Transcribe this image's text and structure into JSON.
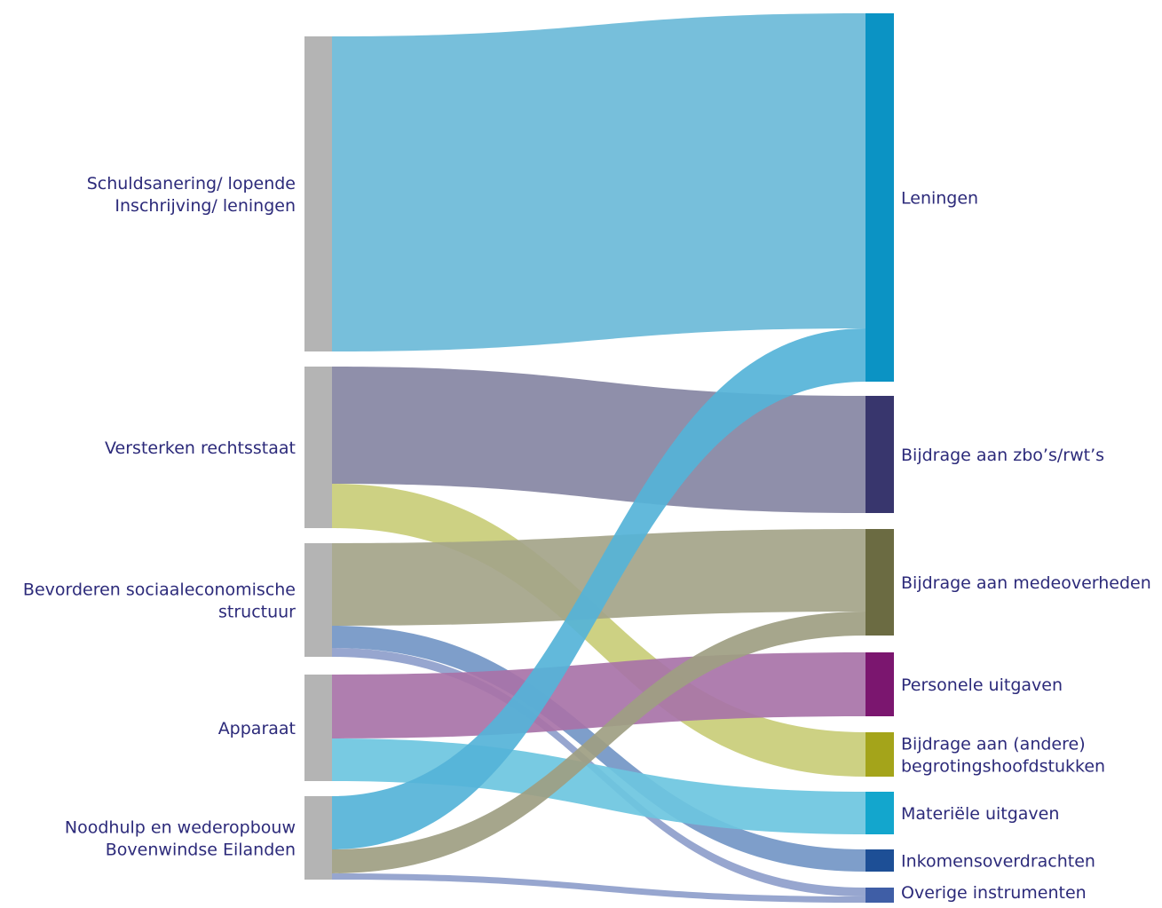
{
  "diagram": {
    "sources": [
      {
        "id": "s1",
        "label_lines": [
          "Schuldsanering/ lopende",
          "Inschrijving/ leningen"
        ]
      },
      {
        "id": "s2",
        "label_lines": [
          "Versterken rechtsstaat"
        ]
      },
      {
        "id": "s3",
        "label_lines": [
          "Bevorderen sociaaleconomische",
          "structuur"
        ]
      },
      {
        "id": "s4",
        "label_lines": [
          "Apparaat"
        ]
      },
      {
        "id": "s5",
        "label_lines": [
          "Noodhulp en wederopbouw",
          "Bovenwindse Eilanden"
        ]
      }
    ],
    "targets": [
      {
        "id": "t1",
        "label_lines": [
          "Leningen"
        ],
        "color": "#0b93c4"
      },
      {
        "id": "t2",
        "label_lines": [
          "Bijdrage aan zbo’s/rwt’s"
        ],
        "color": "#38366d"
      },
      {
        "id": "t3",
        "label_lines": [
          "Bijdrage aan medeoverheden"
        ],
        "color": "#6b6b42"
      },
      {
        "id": "t4",
        "label_lines": [
          "Personele uitgaven"
        ],
        "color": "#7b166f"
      },
      {
        "id": "t5",
        "label_lines": [
          "Bijdrage aan (andere)",
          "begrotingshoofdstukken"
        ],
        "color": "#a4a41a"
      },
      {
        "id": "t6",
        "label_lines": [
          "Materiële uitgaven"
        ],
        "color": "#13a6cd"
      },
      {
        "id": "t7",
        "label_lines": [
          "Inkomensoverdrachten"
        ],
        "color": "#1d4f96"
      },
      {
        "id": "t8",
        "label_lines": [
          "Overige instrumenten"
        ],
        "color": "#3f5ea6"
      }
    ],
    "source_color": "#b4b4b4",
    "label_color": "#2c2a7a",
    "flows": [
      {
        "source": "s1",
        "target": "t1",
        "value": 355,
        "color": "#6bbad8"
      },
      {
        "source": "s2",
        "target": "t2",
        "value": 132,
        "color": "#8586a3"
      },
      {
        "source": "s2",
        "target": "t5",
        "value": 50,
        "color": "#c9cd78"
      },
      {
        "source": "s3",
        "target": "t3",
        "value": 93,
        "color": "#a4a489"
      },
      {
        "source": "s3",
        "target": "t7",
        "value": 25,
        "color": "#7396c5"
      },
      {
        "source": "s3",
        "target": "t8",
        "value": 10,
        "color": "#8e9ecb"
      },
      {
        "source": "s4",
        "target": "t4",
        "value": 72,
        "color": "#a873a8"
      },
      {
        "source": "s4",
        "target": "t6",
        "value": 48,
        "color": "#6cc6df"
      },
      {
        "source": "s5",
        "target": "t1",
        "value": 60,
        "color": "#55b3d8"
      },
      {
        "source": "s5",
        "target": "t3",
        "value": 27,
        "color": "#9e9e82"
      },
      {
        "source": "s5",
        "target": "t8",
        "value": 7,
        "color": "#8e9ecb"
      }
    ]
  }
}
